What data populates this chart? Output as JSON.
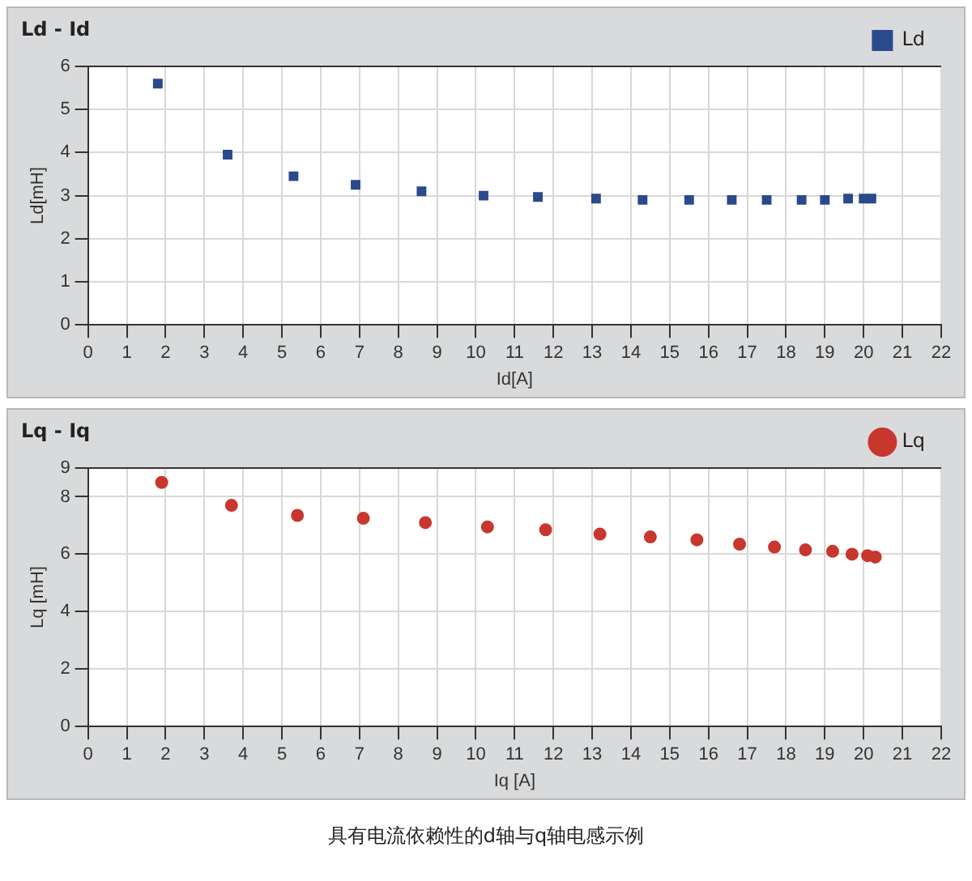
{
  "chart_data": [
    {
      "type": "scatter",
      "title": "Ld - Id",
      "xlabel": "Id[A]",
      "ylabel": "Ld[mH]",
      "marker": "square",
      "legend": "top right",
      "grid": true,
      "x": [
        1.8,
        3.6,
        5.3,
        6.9,
        8.6,
        10.2,
        11.6,
        13.1,
        14.3,
        15.5,
        16.6,
        17.5,
        18.4,
        19.0,
        19.6,
        20.0,
        20.2
      ],
      "series": [
        {
          "name": "Ld",
          "color": "#2b4a8b",
          "values": [
            5.6,
            3.95,
            3.45,
            3.25,
            3.1,
            3.0,
            2.97,
            2.93,
            2.9,
            2.9,
            2.9,
            2.9,
            2.9,
            2.9,
            2.93,
            2.93,
            2.93
          ]
        }
      ],
      "xlim": [
        0,
        22
      ],
      "xticks": [
        0,
        1,
        2,
        3,
        4,
        5,
        6,
        7,
        8,
        9,
        10,
        11,
        12,
        13,
        14,
        15,
        16,
        17,
        18,
        19,
        20,
        21,
        22
      ],
      "ylim": [
        0,
        6
      ],
      "yticks": [
        0,
        1,
        2,
        3,
        4,
        5,
        6
      ]
    },
    {
      "type": "scatter",
      "title": "Lq - Iq",
      "xlabel": "Iq [A]",
      "ylabel": "Lq [mH]",
      "marker": "circle",
      "legend": "top right",
      "grid": true,
      "x": [
        1.9,
        3.7,
        5.4,
        7.1,
        8.7,
        10.3,
        11.8,
        13.2,
        14.5,
        15.7,
        16.8,
        17.7,
        18.5,
        19.2,
        19.7,
        20.1,
        20.3
      ],
      "series": [
        {
          "name": "Lq",
          "color": "#c8372d",
          "values": [
            8.5,
            7.7,
            7.35,
            7.25,
            7.1,
            6.95,
            6.85,
            6.7,
            6.6,
            6.5,
            6.35,
            6.25,
            6.15,
            6.1,
            6.0,
            5.95,
            5.9
          ]
        }
      ],
      "xlim": [
        0,
        22
      ],
      "xticks": [
        0,
        1,
        2,
        3,
        4,
        5,
        6,
        7,
        8,
        9,
        10,
        11,
        12,
        13,
        14,
        15,
        16,
        17,
        18,
        19,
        20,
        21,
        22
      ],
      "ylim": [
        0,
        9
      ],
      "yticks": [
        0,
        2,
        4,
        6,
        8,
        9
      ],
      "annotations": [
        "具有电流依赖性的d轴与q轴电感示例"
      ]
    }
  ]
}
